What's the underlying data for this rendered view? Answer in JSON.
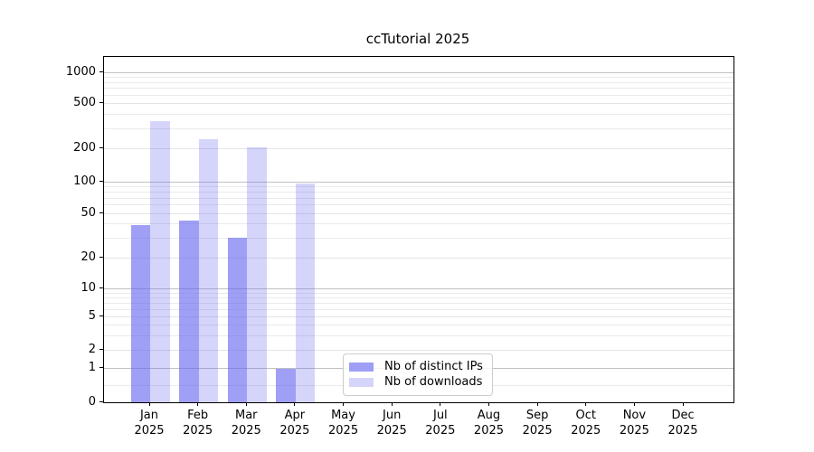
{
  "title": "ccTutorial 2025",
  "chart_data": {
    "type": "bar",
    "title": "ccTutorial 2025",
    "categories": [
      "Jan",
      "Feb",
      "Mar",
      "Apr",
      "May",
      "Jun",
      "Jul",
      "Aug",
      "Sep",
      "Oct",
      "Nov",
      "Dec"
    ],
    "year_label": "2025",
    "series": [
      {
        "name": "Nb of distinct IPs",
        "color": "#a4a4f4",
        "color_rgba": "rgba(100,100,240,0.62)",
        "values": [
          39,
          43,
          30,
          1,
          0,
          0,
          0,
          0,
          0,
          0,
          0,
          0
        ]
      },
      {
        "name": "Nb of downloads",
        "color": "#d8d8f9",
        "color_rgba": "rgba(100,100,240,0.27)",
        "values": [
          350,
          240,
          205,
          96,
          0,
          0,
          0,
          0,
          0,
          0,
          0,
          0
        ]
      }
    ],
    "xlabel": "",
    "ylabel": "",
    "yscale": "symlog",
    "yticks": [
      0,
      1,
      2,
      5,
      10,
      20,
      50,
      100,
      200,
      500,
      1000
    ],
    "ylim": [
      0,
      1400
    ],
    "grid": true,
    "legend_position": "inside bottom center-left"
  },
  "colors": {
    "bar_distinct_ips": "#a4a4f4",
    "bar_downloads": "#d8d8f9",
    "grid_major": "#c0c0c0",
    "grid_minor": "#eaeaea",
    "axis": "#000000",
    "background": "#ffffff"
  }
}
